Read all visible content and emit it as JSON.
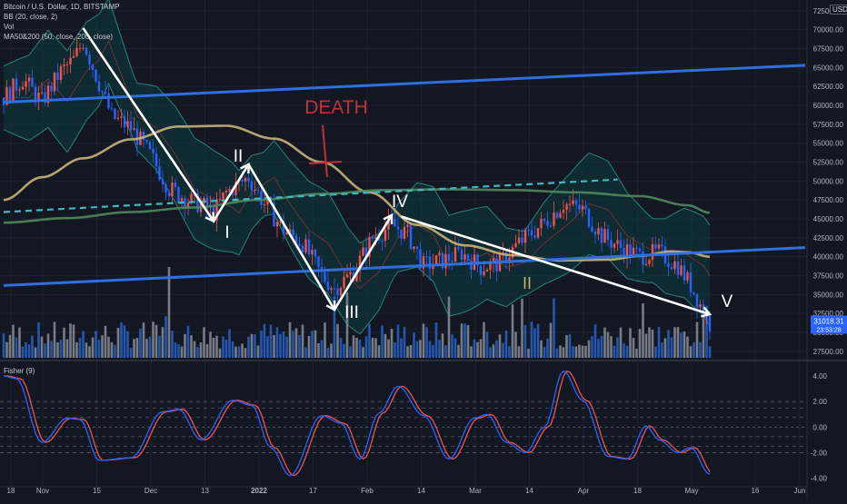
{
  "header": {
    "symbol": "Bitcoin / U.S. Dollar, 1D, BITSTAMP",
    "indicator_bb": "BB (20, close, 2)",
    "indicator_vol": "Vol",
    "indicator_ma": "MA50&200 (50, close, 200, close)",
    "currency": "USD"
  },
  "fisher_panel": {
    "title": "Fisher (9)"
  },
  "colors": {
    "background": "#131722",
    "grid": "#1e2230",
    "up": "#ef5350",
    "down": "#2962ff",
    "up_volume": "#2a63c9",
    "down_volume": "#8a8d97",
    "bb_fill": "#0f3b3e",
    "bb_line": "#2a9d8f",
    "ma50": "#c9b37a",
    "ma200": "#4d8a5b",
    "trendline": "#2f6fe0",
    "fisher_line": "#2962ff",
    "fisher_signal": "#ef5350",
    "annotation_white": "#ffffff",
    "death_text": "#c2303a",
    "wave_ii_small": "#c8b36a"
  },
  "chart_data": [
    {
      "type": "candlestick",
      "title": "Bitcoin / U.S. Dollar, 1D, BITSTAMP",
      "y_axis_ticks": [
        "72500.00",
        "70000.00",
        "67500.00",
        "65000.00",
        "62500.00",
        "60000.00",
        "57500.00",
        "55000.00",
        "52500.00",
        "50000.00",
        "47500.00",
        "45000.00",
        "42500.00",
        "40000.00",
        "37500.00",
        "35000.00",
        "32500.00",
        "30000.00",
        "27500.00"
      ],
      "ylim": [
        25800,
        73200
      ],
      "x_axis_ticks": [
        "18",
        "Nov",
        "15",
        "Dec",
        "13",
        "2022",
        "17",
        "Feb",
        "14",
        "Mar",
        "14",
        "Apr",
        "18",
        "May",
        "16",
        "Jun"
      ],
      "last_price_label": "31018.31",
      "last_time_label": "23:53:28",
      "series": [
        {
          "name": "MA50",
          "points": [
            [
              0,
              47500
            ],
            [
              12,
              50500
            ],
            [
              25,
              53000
            ],
            [
              40,
              55500
            ],
            [
              55,
              57200
            ],
            [
              70,
              57300
            ],
            [
              85,
              55600
            ],
            [
              100,
              52500
            ],
            [
              115,
              48500
            ],
            [
              130,
              44200
            ],
            [
              145,
              41500
            ],
            [
              160,
              40200
            ],
            [
              175,
              39500
            ],
            [
              190,
              39600
            ],
            [
              200,
              40100
            ],
            [
              210,
              40700
            ],
            [
              215,
              40600
            ],
            [
              222,
              40000
            ]
          ]
        },
        {
          "name": "MA200",
          "points": [
            [
              0,
              44500
            ],
            [
              20,
              45100
            ],
            [
              40,
              45900
            ],
            [
              60,
              46500
            ],
            [
              80,
              47500
            ],
            [
              100,
              48300
            ],
            [
              120,
              48800
            ],
            [
              140,
              48900
            ],
            [
              160,
              48800
            ],
            [
              180,
              48500
            ],
            [
              200,
              48000
            ],
            [
              215,
              46800
            ],
            [
              222,
              45800
            ]
          ]
        }
      ],
      "annotations": {
        "wave_labels": [
          "I",
          "II",
          "III",
          "IV",
          "V"
        ],
        "small_label": "II",
        "death_label": "DEATH",
        "wave_path": [
          [
            25,
            70200
          ],
          [
            66,
            44700
          ],
          [
            77,
            52200
          ],
          [
            104,
            33000
          ],
          [
            122,
            45500
          ]
        ],
        "fifth_wave": [
          [
            125,
            45300
          ],
          [
            222,
            32400
          ]
        ],
        "upper_trendline": [
          [
            0,
            60400
          ],
          [
            252,
            65300
          ]
        ],
        "lower_trendline": [
          [
            0,
            36200
          ],
          [
            252,
            41200
          ]
        ],
        "dashed_line": [
          [
            0,
            45900
          ],
          [
            193,
            50200
          ]
        ]
      }
    },
    {
      "type": "line",
      "title": "Fisher (9)",
      "y_axis_ticks": [
        "4.00",
        "2.00",
        "0.00",
        "-2.00",
        "-4.00"
      ],
      "ylim": [
        -4.6,
        5.0
      ],
      "levels": [
        2.0,
        1.5,
        0.75,
        0.0,
        -0.75,
        -1.5,
        -2.0
      ],
      "anchors": [
        [
          0,
          4.0
        ],
        [
          4,
          3.8
        ],
        [
          12,
          -1.2
        ],
        [
          20,
          0.7
        ],
        [
          24,
          0.6
        ],
        [
          30,
          -2.6
        ],
        [
          40,
          -2.4
        ],
        [
          50,
          1.2
        ],
        [
          55,
          1.4
        ],
        [
          62,
          -1.0
        ],
        [
          72,
          2.1
        ],
        [
          78,
          1.7
        ],
        [
          84,
          -1.6
        ],
        [
          90,
          -3.8
        ],
        [
          100,
          0.9
        ],
        [
          106,
          0.3
        ],
        [
          112,
          -2.5
        ],
        [
          118,
          1.1
        ],
        [
          124,
          3.2
        ],
        [
          132,
          0.9
        ],
        [
          140,
          -2.5
        ],
        [
          148,
          0.7
        ],
        [
          152,
          1.0
        ],
        [
          158,
          -1.2
        ],
        [
          164,
          -2.0
        ],
        [
          170,
          0.0
        ],
        [
          176,
          4.4
        ],
        [
          182,
          2.1
        ],
        [
          190,
          -2.3
        ],
        [
          196,
          -2.5
        ],
        [
          202,
          0.1
        ],
        [
          206,
          -1.0
        ],
        [
          212,
          -2.0
        ],
        [
          216,
          -1.6
        ],
        [
          222,
          -3.7
        ]
      ]
    }
  ]
}
